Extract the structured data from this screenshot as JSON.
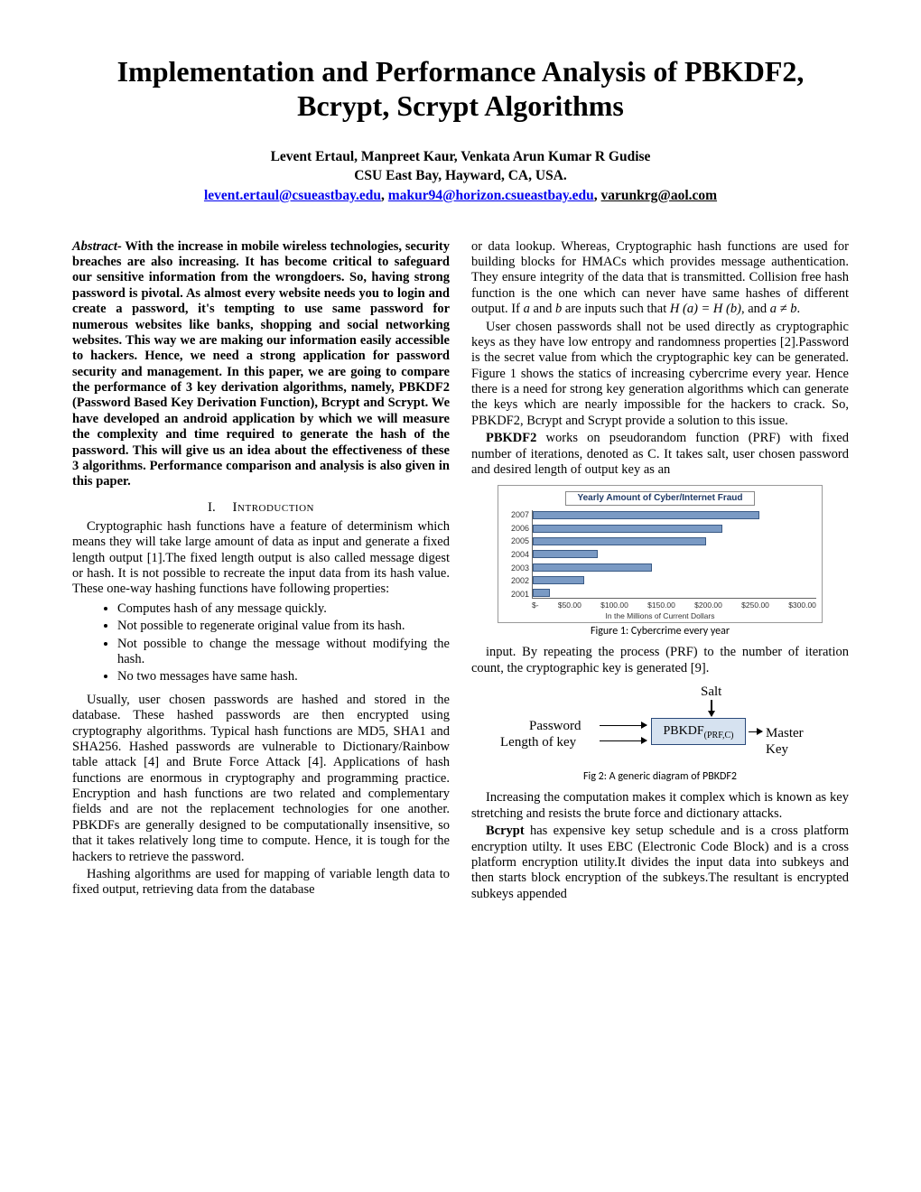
{
  "title": "Implementation and Performance Analysis of PBKDF2, Bcrypt, Scrypt Algorithms",
  "authors": "Levent Ertaul, Manpreet Kaur,  Venkata Arun Kumar R Gudise",
  "affiliation": "CSU East Bay, Hayward, CA, USA.",
  "emails": {
    "e1": "levent.ertaul@csueastbay.edu",
    "e2": "makur94@horizon.csueastbay.edu",
    "e3": "varunkrg@aol.com"
  },
  "abstract_label": "Abstract-",
  "abstract": "With the increase in mobile wireless technologies, security breaches are also increasing. It has become critical to safeguard our sensitive information from the wrongdoers. So, having strong password is pivotal. As almost every website needs you to login and create a password, it's tempting to use same password for numerous websites like banks, shopping and social networking websites. This way we are making our information easily accessible to hackers. Hence, we need a strong application for password security and management. In this paper, we are going to compare the performance of 3 key derivation algorithms, namely, PBKDF2 (Password Based Key Derivation Function), Bcrypt and Scrypt. We have developed an android application by which we will measure the complexity and time required to generate the hash of the password. This will give us an idea about the effectiveness of these 3 algorithms. Performance comparison and analysis is also given  in this paper.",
  "section1_num": "I.",
  "section1_name": "Introduction",
  "intro_p1": "Cryptographic hash functions have a feature of determinism which means they will take large amount of data as input and generate a fixed length output [1].The fixed length output is also called message digest or hash. It is not possible to recreate the input data from its hash value. These one-way hashing functions have following properties:",
  "bullets": {
    "b1": "Computes hash of any message quickly.",
    "b2": "Not possible to regenerate original value from its hash.",
    "b3": "Not possible to change the message without modifying the hash.",
    "b4": "No two messages have same hash."
  },
  "intro_p2": "Usually, user chosen passwords are hashed and stored in the database. These hashed passwords are then encrypted using cryptography algorithms. Typical hash functions are MD5, SHA1 and SHA256. Hashed passwords are vulnerable to Dictionary/Rainbow table attack [4] and Brute Force Attack [4]. Applications of hash functions are enormous in cryptography and programming practice. Encryption and hash functions are two related and complementary fields and are not the replacement technologies for one another. PBKDFs are generally designed to be computationally insensitive, so that it takes relatively long time to compute. Hence, it is tough for the hackers to retrieve the password.",
  "intro_p3": "Hashing algorithms are used for mapping of variable length data to fixed output, retrieving data from the database",
  "col2_p1a": "or data lookup. Whereas, Cryptographic hash functions are used for building blocks for HMACs which provides message authentication. They ensure integrity of the data that is transmitted. Collision free hash function is the one which can never have same hashes of different output. If ",
  "col2_p1b_a": "a",
  "col2_p1b_and": " and ",
  "col2_p1b_b": "b",
  "col2_p1b_mid": " are inputs such that ",
  "col2_p1b_eq": "H (a) = H (b)",
  "col2_p1b_and2": ", and ",
  "col2_p1b_neq": "a ≠ b",
  "col2_p1b_end": ".",
  "col2_p2": "User chosen passwords shall not be used directly as cryptographic keys as they have low entropy and randomness properties [2].Password is the secret value from which the cryptographic key can be generated. Figure 1 shows the statics of increasing cybercrime every year. Hence there is a need for strong key generation algorithms which can generate the keys which are nearly impossible for the hackers to crack. So, PBKDF2, Bcrypt and Scrypt provide a solution to this issue.",
  "col2_p3_b": "PBKDF2",
  "col2_p3": " works on pseudorandom function (PRF) with fixed number of iterations, denoted as C. It takes salt, user chosen password and desired length of output key as an",
  "chart1": {
    "title": "Yearly Amount of Cyber/Internet Fraud",
    "years": [
      "2007",
      "2006",
      "2005",
      "2004",
      "2003",
      "2002",
      "2001"
    ],
    "values_pct": [
      80,
      67,
      61,
      23,
      42,
      18,
      6
    ],
    "bar_color": "#7a9ac4",
    "bar_border": "#3a5a85",
    "xticks": [
      "$-",
      "$50.00",
      "$100.00",
      "$150.00",
      "$200.00",
      "$250.00",
      "$300.00"
    ],
    "xlabel": "In the Millions of Current Dollars"
  },
  "fig1_cap": "Figure 1: Cybercrime every year",
  "col2_p4": "input. By repeating the process (PRF) to the number of iteration count, the cryptographic key is generated [9].",
  "diag2": {
    "salt": "Salt",
    "password": "Password",
    "length": "Length of key",
    "box_text": "PBKDF",
    "box_sub": "(PRF,C)",
    "master": "Master Key",
    "box_bg": "#d6e2f0",
    "box_border": "#2a4a7a"
  },
  "fig2_cap": "Fig 2: A generic diagram of PBKDF2",
  "col2_p5": "Increasing the computation makes it complex which is known as key stretching and resists the brute force and dictionary attacks.",
  "col2_p6_b": "Bcrypt",
  "col2_p6": " has expensive key setup schedule and is a cross platform encryption utilty. It uses EBC (Electronic Code Block) and is a cross platform encryption utility.It divides the input data into subkeys and then starts block encryption of the subkeys.The resultant is encrypted subkeys appended"
}
